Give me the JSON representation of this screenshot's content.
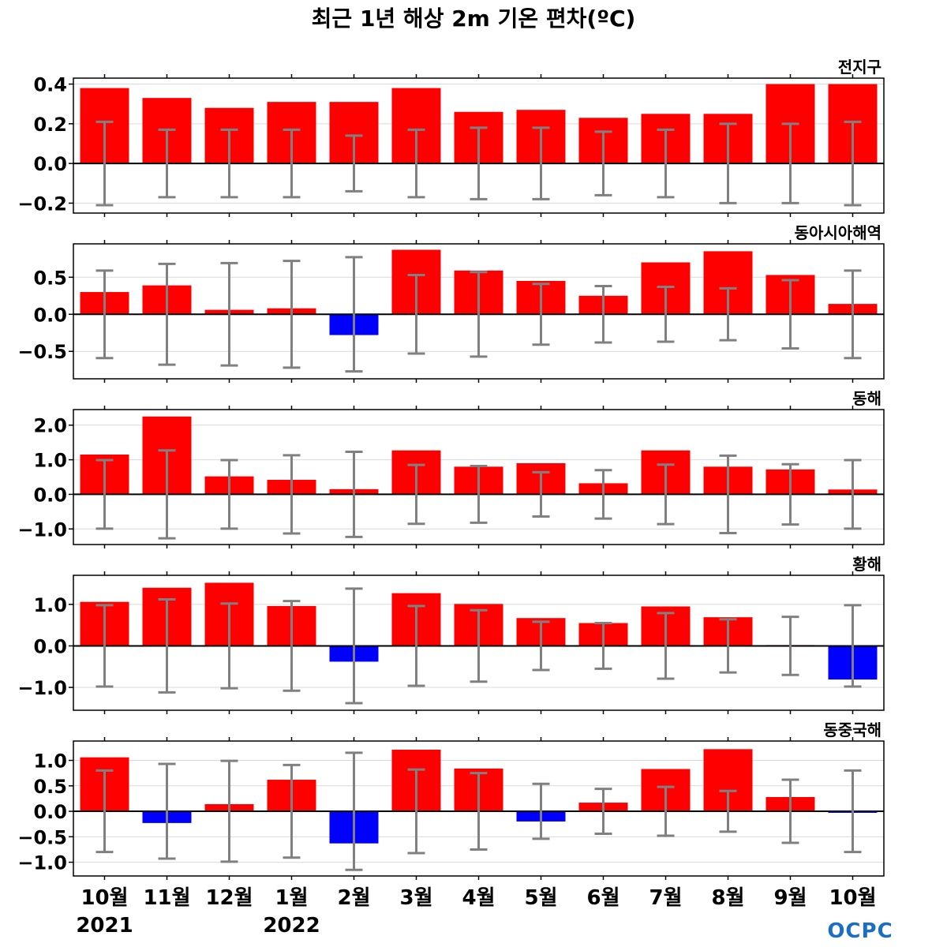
{
  "title": "최근 1년 해상 2m 기온 편차(ºC)",
  "colors": {
    "positive": "#ff0000",
    "negative": "#0000ff",
    "errorbar": "#808080",
    "zero_line": "#000000",
    "grid": "#d9d9d9",
    "axes": "#000000",
    "logo": "#1a6fc4"
  },
  "logo": {
    "text": "OCPC"
  },
  "chart_data": [
    {
      "type": "bar",
      "title": "전지구",
      "categories": [
        "10월",
        "11월",
        "12월",
        "1월",
        "2월",
        "3월",
        "4월",
        "5월",
        "6월",
        "7월",
        "8월",
        "9월",
        "10월"
      ],
      "values": [
        0.38,
        0.33,
        0.28,
        0.31,
        0.31,
        0.38,
        0.26,
        0.27,
        0.23,
        0.25,
        0.25,
        0.4,
        0.4
      ],
      "errors": [
        0.21,
        0.17,
        0.17,
        0.17,
        0.14,
        0.17,
        0.18,
        0.18,
        0.16,
        0.17,
        0.2,
        0.2,
        0.21
      ],
      "ylim": [
        -0.25,
        0.43
      ],
      "yticks": [
        -0.2,
        0.0,
        0.2,
        0.4
      ],
      "ytick_labels": [
        "−0.2",
        "0.0",
        "0.2",
        "0.4"
      ]
    },
    {
      "type": "bar",
      "title": "동아시아해역",
      "categories": [
        "10월",
        "11월",
        "12월",
        "1월",
        "2월",
        "3월",
        "4월",
        "5월",
        "6월",
        "7월",
        "8월",
        "9월",
        "10월"
      ],
      "values": [
        0.3,
        0.39,
        0.06,
        0.08,
        -0.28,
        0.87,
        0.59,
        0.45,
        0.25,
        0.7,
        0.85,
        0.53,
        0.14
      ],
      "errors": [
        0.59,
        0.68,
        0.69,
        0.72,
        0.77,
        0.53,
        0.57,
        0.41,
        0.38,
        0.37,
        0.35,
        0.46,
        0.59
      ],
      "ylim": [
        -0.87,
        0.95
      ],
      "yticks": [
        -0.5,
        0.0,
        0.5
      ],
      "ytick_labels": [
        "−0.5",
        "0.0",
        "0.5"
      ]
    },
    {
      "type": "bar",
      "title": "동해",
      "categories": [
        "10월",
        "11월",
        "12월",
        "1월",
        "2월",
        "3월",
        "4월",
        "5월",
        "6월",
        "7월",
        "8월",
        "9월",
        "10월"
      ],
      "values": [
        1.15,
        2.25,
        0.52,
        0.42,
        0.15,
        1.27,
        0.8,
        0.9,
        0.32,
        1.27,
        0.8,
        0.72,
        0.14
      ],
      "errors": [
        0.99,
        1.27,
        0.99,
        1.13,
        1.23,
        0.85,
        0.82,
        0.64,
        0.7,
        0.86,
        1.12,
        0.87,
        0.99
      ],
      "ylim": [
        -1.45,
        2.45
      ],
      "yticks": [
        -1.0,
        0.0,
        1.0,
        2.0
      ],
      "ytick_labels": [
        "−1.0",
        "0.0",
        "1.0",
        "2.0"
      ]
    },
    {
      "type": "bar",
      "title": "황해",
      "categories": [
        "10월",
        "11월",
        "12월",
        "1월",
        "2월",
        "3월",
        "4월",
        "5월",
        "6월",
        "7월",
        "8월",
        "9월",
        "10월"
      ],
      "values": [
        1.06,
        1.4,
        1.52,
        0.96,
        -0.38,
        1.27,
        1.01,
        0.67,
        0.55,
        0.95,
        0.69,
        0.02,
        -0.81
      ],
      "errors": [
        0.98,
        1.12,
        1.02,
        1.08,
        1.38,
        0.96,
        0.86,
        0.58,
        0.55,
        0.79,
        0.64,
        0.7,
        0.98
      ],
      "ylim": [
        -1.55,
        1.7
      ],
      "yticks": [
        -1.0,
        0.0,
        1.0
      ],
      "ytick_labels": [
        "−1.0",
        "0.0",
        "1.0"
      ]
    },
    {
      "type": "bar",
      "title": "동중국해",
      "categories": [
        "10월",
        "11월",
        "12월",
        "1월",
        "2월",
        "3월",
        "4월",
        "5월",
        "6월",
        "7월",
        "8월",
        "9월",
        "10월"
      ],
      "values": [
        1.06,
        -0.23,
        0.14,
        0.62,
        -0.63,
        1.21,
        0.84,
        -0.2,
        0.17,
        0.83,
        1.22,
        0.28,
        -0.03
      ],
      "errors": [
        0.8,
        0.93,
        0.99,
        0.91,
        1.15,
        0.82,
        0.75,
        0.54,
        0.44,
        0.48,
        0.4,
        0.62,
        0.8
      ],
      "ylim": [
        -1.27,
        1.38
      ],
      "yticks": [
        -1.0,
        -0.5,
        0.0,
        0.5,
        1.0
      ],
      "ytick_labels": [
        "−1.0",
        "−0.5",
        "0.0",
        "0.5",
        "1.0"
      ]
    }
  ],
  "x_axis": {
    "labels": [
      "10월",
      "11월",
      "12월",
      "1월",
      "2월",
      "3월",
      "4월",
      "5월",
      "6월",
      "7월",
      "8월",
      "9월",
      "10월"
    ],
    "years": [
      {
        "index": 0,
        "label": "2021"
      },
      {
        "index": 3,
        "label": "2022"
      }
    ]
  }
}
